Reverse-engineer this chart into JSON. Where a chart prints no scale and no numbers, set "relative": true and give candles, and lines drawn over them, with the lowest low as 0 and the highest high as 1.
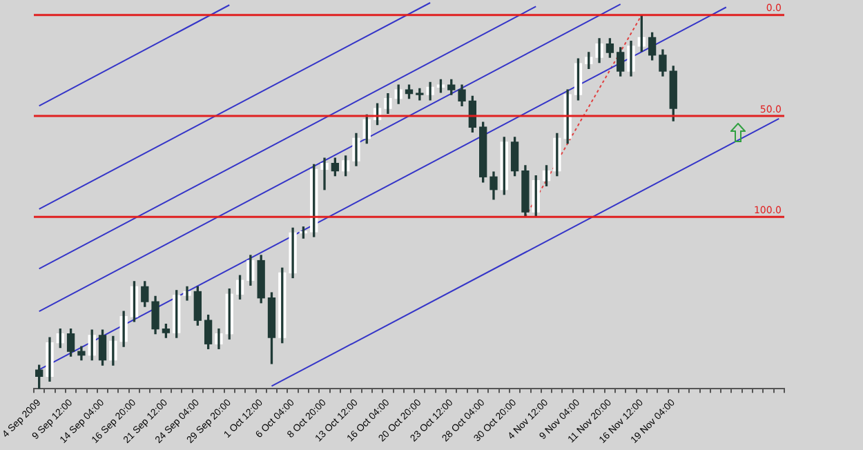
{
  "chart_data": {
    "type": "candlestick",
    "relative": true,
    "legend": false,
    "color": "#1f3a36",
    "colors": [
      "#1f3a36",
      "#ffffff",
      "#ffffff",
      "#1f3a36",
      "#1f3a36",
      "#ffffff",
      "#1f3a36",
      "#ffffff",
      "#ffffff",
      "#ffffff",
      "#1f3a36",
      "#1f3a36",
      "#1f3a36",
      "#ffffff",
      "#ffffff",
      "#1f3a36",
      "#1f3a36",
      "#ffffff",
      "#ffffff",
      "#ffffff",
      "#ffffff",
      "#1f3a36",
      "#1f3a36",
      "#ffffff",
      "#ffffff",
      "#ffffff",
      "#ffffff",
      "#ffffff",
      "#1f3a36",
      "#ffffff",
      "#ffffff",
      "#ffffff",
      "#ffffff",
      "#ffffff",
      "#ffffff",
      "#1f3a36",
      "#1f3a36",
      "#ffffff",
      "#ffffff",
      "#1f3a36",
      "#1f3a36",
      "#1f3a36",
      "#1f3a36",
      "#1f3a36",
      "#ffffff",
      "#1f3a36",
      "#1f3a36",
      "#ffffff",
      "#ffffff",
      "#ffffff",
      "#ffffff",
      "#ffffff",
      "#ffffff",
      "#ffffff",
      "#1f3a36",
      "#1f3a36",
      "#ffffff",
      "#ffffff",
      "#1f3a36",
      "#1f3a36",
      "#1f3a36",
      null,
      null,
      null,
      null,
      null,
      null,
      null,
      null,
      null,
      null
    ],
    "categories": [
      "4 Sep 2009",
      null,
      null,
      "9 Sep 12:00",
      null,
      null,
      "14 Sep 04:00",
      null,
      null,
      "16 Sep 20:00",
      null,
      null,
      "21 Sep 12:00",
      null,
      null,
      "24 Sep 04:00",
      null,
      null,
      "29 Sep 20:00",
      null,
      null,
      "1 Oct 12:00",
      null,
      null,
      "6 Oct 04:00",
      null,
      null,
      "8 Oct 20:00",
      null,
      null,
      "13 Oct 12:00",
      null,
      null,
      "16 Oct 04:00",
      null,
      null,
      "20 Oct 20:00",
      null,
      null,
      "23 Oct 12:00",
      null,
      null,
      "28 Oct 04:00",
      null,
      null,
      "30 Oct 20:00",
      null,
      null,
      "4 Nov 12:00",
      null,
      null,
      "9 Nov 04:00",
      null,
      null,
      "11 Nov 20:00",
      null,
      null,
      "16 Nov 12:00",
      null,
      null,
      "19 Nov 04:00",
      null,
      null,
      null,
      null,
      null,
      null,
      null,
      null,
      null,
      null
    ],
    "ohlc": [
      [
        0.05,
        0.063,
        0,
        0.033
      ],
      [
        0.033,
        0.137,
        0.02,
        0.123
      ],
      [
        0.123,
        0.16,
        0.11,
        0.147
      ],
      [
        0.147,
        0.16,
        0.087,
        0.1
      ],
      [
        0.1,
        0.113,
        0.077,
        0.09
      ],
      [
        0.09,
        0.157,
        0.077,
        0.143
      ],
      [
        0.143,
        0.157,
        0.063,
        0.077
      ],
      [
        0.077,
        0.14,
        0.063,
        0.127
      ],
      [
        0.127,
        0.207,
        0.113,
        0.193
      ],
      [
        0.193,
        0.287,
        0.18,
        0.273
      ],
      [
        0.273,
        0.287,
        0.22,
        0.233
      ],
      [
        0.233,
        0.247,
        0.147,
        0.16
      ],
      [
        0.16,
        0.173,
        0.137,
        0.15
      ],
      [
        0.15,
        0.263,
        0.137,
        0.25
      ],
      [
        0.25,
        0.273,
        0.237,
        0.26
      ],
      [
        0.26,
        0.273,
        0.17,
        0.183
      ],
      [
        0.183,
        0.197,
        0.107,
        0.12
      ],
      [
        0.12,
        0.16,
        0.107,
        0.147
      ],
      [
        0.147,
        0.267,
        0.133,
        0.253
      ],
      [
        0.253,
        0.303,
        0.24,
        0.29
      ],
      [
        0.29,
        0.357,
        0.277,
        0.343
      ],
      [
        0.343,
        0.357,
        0.23,
        0.243
      ],
      [
        0.243,
        0.257,
        0.067,
        0.137
      ],
      [
        0.137,
        0.323,
        0.123,
        0.31
      ],
      [
        0.31,
        0.43,
        0.297,
        0.417
      ],
      [
        0.417,
        0.433,
        0.403,
        0.42
      ],
      [
        0.42,
        0.6,
        0.407,
        0.587
      ],
      [
        0.587,
        0.617,
        0.533,
        0.603
      ],
      [
        0.603,
        0.617,
        0.57,
        0.583
      ],
      [
        0.583,
        0.623,
        0.57,
        0.61
      ],
      [
        0.61,
        0.683,
        0.597,
        0.67
      ],
      [
        0.67,
        0.733,
        0.657,
        0.72
      ],
      [
        0.72,
        0.763,
        0.707,
        0.75
      ],
      [
        0.75,
        0.79,
        0.737,
        0.777
      ],
      [
        0.777,
        0.813,
        0.763,
        0.8
      ],
      [
        0.8,
        0.813,
        0.777,
        0.79
      ],
      [
        0.79,
        0.803,
        0.773,
        0.787
      ],
      [
        0.787,
        0.82,
        0.773,
        0.807
      ],
      [
        0.807,
        0.827,
        0.793,
        0.813
      ],
      [
        0.813,
        0.827,
        0.787,
        0.8
      ],
      [
        0.8,
        0.813,
        0.757,
        0.77
      ],
      [
        0.77,
        0.783,
        0.687,
        0.7
      ],
      [
        0.7,
        0.713,
        0.553,
        0.567
      ],
      [
        0.567,
        0.58,
        0.507,
        0.533
      ],
      [
        0.533,
        0.673,
        0.52,
        0.66
      ],
      [
        0.66,
        0.673,
        0.57,
        0.583
      ],
      [
        0.583,
        0.597,
        0.46,
        0.473
      ],
      [
        0.473,
        0.57,
        0.46,
        0.557
      ],
      [
        0.557,
        0.597,
        0.543,
        0.583
      ],
      [
        0.583,
        0.683,
        0.57,
        0.67
      ],
      [
        0.67,
        0.8,
        0.657,
        0.787
      ],
      [
        0.787,
        0.883,
        0.773,
        0.87
      ],
      [
        0.87,
        0.9,
        0.857,
        0.887
      ],
      [
        0.887,
        0.937,
        0.873,
        0.923
      ],
      [
        0.923,
        0.937,
        0.887,
        0.9
      ],
      [
        0.9,
        0.913,
        0.837,
        0.85
      ],
      [
        0.85,
        0.93,
        0.837,
        0.917
      ],
      [
        0.917,
        1,
        0.903,
        0.94
      ],
      [
        0.94,
        0.953,
        0.88,
        0.893
      ],
      [
        0.893,
        0.907,
        0.837,
        0.85
      ],
      [
        0.85,
        0.863,
        0.717,
        0.75
      ],
      null,
      null,
      null,
      null,
      null,
      null,
      null,
      null,
      null,
      null
    ],
    "series": [
      {
        "type": "line",
        "color": "#3535c8",
        "values": [
          0.757,
          null,
          null,
          null,
          null,
          null,
          null,
          null,
          null,
          null,
          null,
          null,
          null,
          null,
          null,
          null,
          null,
          null,
          1.027,
          null,
          null,
          null,
          null,
          null,
          null,
          null,
          null,
          null,
          null,
          null,
          null,
          null,
          null,
          null,
          null,
          null,
          null,
          null,
          null,
          null,
          null,
          null,
          null,
          null,
          null,
          null,
          null,
          null,
          null,
          null,
          null,
          null,
          null,
          null,
          null,
          null,
          null,
          null,
          null,
          null,
          null,
          null,
          null,
          null,
          null,
          null,
          null,
          null,
          null,
          null,
          null
        ]
      },
      {
        "type": "line",
        "color": "#3535c8",
        "values": [
          0.481,
          null,
          null,
          null,
          null,
          null,
          null,
          null,
          null,
          null,
          null,
          null,
          null,
          null,
          null,
          null,
          null,
          null,
          null,
          null,
          null,
          null,
          null,
          null,
          null,
          null,
          null,
          null,
          null,
          null,
          null,
          null,
          null,
          null,
          null,
          null,
          null,
          1.033,
          null,
          null,
          null,
          null,
          null,
          null,
          null,
          null,
          null,
          null,
          null,
          null,
          null,
          null,
          null,
          null,
          null,
          null,
          null,
          null,
          null,
          null,
          null,
          null,
          null,
          null,
          null,
          null,
          null,
          null,
          null,
          null,
          null
        ]
      },
      {
        "type": "line",
        "color": "#3535c8",
        "values": [
          0.321,
          null,
          null,
          null,
          null,
          null,
          null,
          null,
          null,
          null,
          null,
          null,
          null,
          null,
          null,
          null,
          null,
          null,
          null,
          null,
          null,
          null,
          null,
          null,
          null,
          null,
          null,
          null,
          null,
          null,
          null,
          null,
          null,
          null,
          null,
          null,
          null,
          null,
          null,
          null,
          null,
          null,
          null,
          null,
          null,
          null,
          null,
          1.023,
          null,
          null,
          null,
          null,
          null,
          null,
          null,
          null,
          null,
          null,
          null,
          null,
          null,
          null,
          null,
          null,
          null,
          null,
          null,
          null,
          null,
          null,
          null
        ]
      },
      {
        "type": "line",
        "color": "#3535c8",
        "values": [
          0.207,
          null,
          null,
          null,
          null,
          null,
          null,
          null,
          null,
          null,
          null,
          null,
          null,
          null,
          null,
          null,
          null,
          null,
          null,
          null,
          null,
          null,
          null,
          null,
          null,
          null,
          null,
          null,
          null,
          null,
          null,
          null,
          null,
          null,
          null,
          null,
          null,
          null,
          null,
          null,
          null,
          null,
          null,
          null,
          null,
          null,
          null,
          null,
          null,
          null,
          null,
          null,
          null,
          null,
          null,
          1.029,
          null,
          null,
          null,
          null,
          null,
          null,
          null,
          null,
          null,
          null,
          null,
          null,
          null,
          null,
          null
        ]
      },
      {
        "type": "line",
        "color": "#3535c8",
        "values": [
          0.051,
          null,
          null,
          null,
          null,
          null,
          null,
          null,
          null,
          null,
          null,
          null,
          null,
          null,
          null,
          null,
          null,
          null,
          null,
          null,
          null,
          null,
          null,
          null,
          null,
          null,
          null,
          null,
          null,
          null,
          null,
          null,
          null,
          null,
          null,
          null,
          null,
          null,
          null,
          null,
          null,
          null,
          null,
          null,
          null,
          null,
          null,
          null,
          null,
          null,
          null,
          null,
          null,
          null,
          null,
          null,
          null,
          null,
          null,
          null,
          null,
          null,
          null,
          null,
          null,
          1.021,
          null,
          null,
          null,
          null,
          null
        ]
      },
      {
        "type": "line",
        "color": "#3535c8",
        "values": [
          null,
          null,
          null,
          null,
          null,
          null,
          null,
          null,
          null,
          null,
          null,
          null,
          null,
          null,
          null,
          null,
          null,
          null,
          null,
          null,
          null,
          null,
          0.007,
          null,
          null,
          null,
          null,
          null,
          null,
          null,
          null,
          null,
          null,
          null,
          null,
          null,
          null,
          null,
          null,
          null,
          null,
          null,
          null,
          null,
          null,
          null,
          null,
          null,
          null,
          null,
          null,
          null,
          null,
          null,
          null,
          null,
          null,
          null,
          null,
          null,
          null,
          null,
          null,
          null,
          null,
          null,
          null,
          null,
          null,
          null,
          0.723
        ]
      },
      {
        "type": "line",
        "color": "#e04040",
        "line_style": "dotted",
        "values": [
          null,
          null,
          null,
          null,
          null,
          null,
          null,
          null,
          null,
          null,
          null,
          null,
          null,
          null,
          null,
          null,
          null,
          null,
          null,
          null,
          null,
          null,
          null,
          null,
          null,
          null,
          null,
          null,
          null,
          null,
          null,
          null,
          null,
          null,
          null,
          null,
          null,
          null,
          null,
          null,
          null,
          null,
          null,
          null,
          null,
          null,
          0.46,
          null,
          null,
          null,
          null,
          null,
          null,
          null,
          null,
          null,
          null,
          1,
          null,
          null,
          null,
          null,
          null,
          null,
          null,
          null,
          null,
          null,
          null,
          null,
          null
        ]
      }
    ],
    "ref_lines": [
      {
        "axis": "y",
        "value": 1,
        "color": "#e02020"
      },
      {
        "axis": "y",
        "value": 0.73,
        "color": "#e02020"
      },
      {
        "axis": "y",
        "value": 0.46,
        "color": "#e02020"
      }
    ],
    "annotations": [
      {
        "text": "0.0",
        "y": 1
      },
      {
        "text": "50.0",
        "y": 0.73
      },
      {
        "text": "100.0",
        "y": 0.46
      }
    ]
  }
}
